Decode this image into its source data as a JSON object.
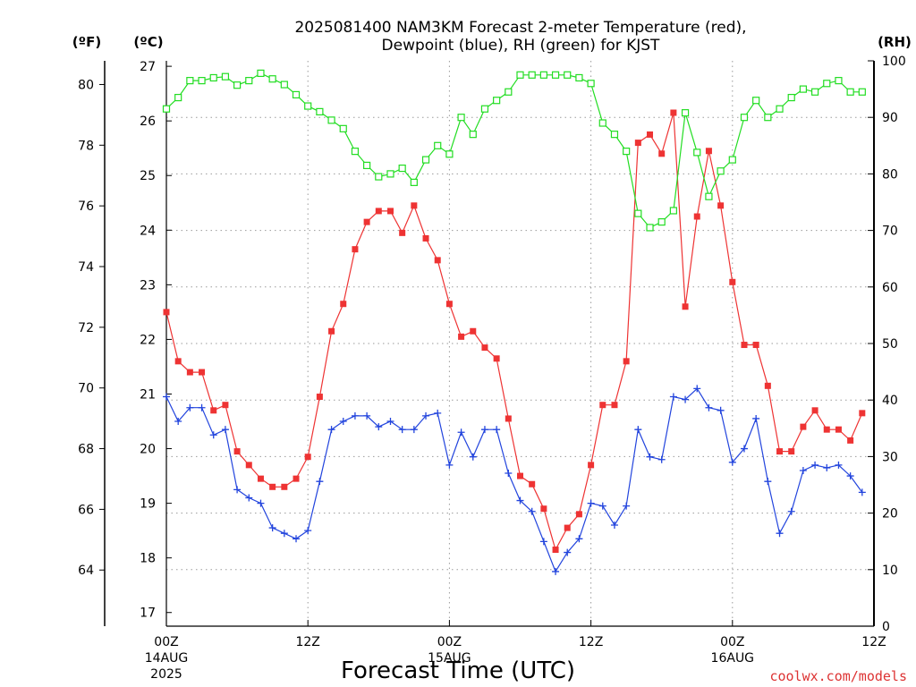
{
  "chart_data": {
    "type": "line",
    "title": "2025081400 NAM3KM Forecast 2-meter Temperature (red),",
    "subtitle": "Dewpoint (blue), RH (green) for KJST",
    "xlabel": "Forecast Time (UTC)",
    "credit": "coolwx.com/models",
    "axes": {
      "left_f": {
        "label": "(ºF)",
        "ticks": [
          64,
          66,
          68,
          70,
          72,
          74,
          76,
          78,
          80
        ]
      },
      "left_c": {
        "label": "(ºC)",
        "range": [
          16.75,
          27.1
        ],
        "ticks": [
          17,
          18,
          19,
          20,
          21,
          22,
          23,
          24,
          25,
          26,
          27
        ]
      },
      "right_rh": {
        "label": "(RH)",
        "range": [
          0,
          100
        ],
        "ticks": [
          0,
          10,
          20,
          30,
          40,
          50,
          60,
          70,
          80,
          90,
          100
        ]
      }
    },
    "x": {
      "unit": "forecast hour",
      "range": [
        0,
        60
      ],
      "ticks": [
        {
          "value": 0,
          "label": "00Z",
          "sub1": "14AUG",
          "sub2": "2025"
        },
        {
          "value": 12,
          "label": "12Z",
          "sub1": "",
          "sub2": ""
        },
        {
          "value": 24,
          "label": "00Z",
          "sub1": "15AUG",
          "sub2": ""
        },
        {
          "value": 36,
          "label": "12Z",
          "sub1": "",
          "sub2": ""
        },
        {
          "value": 48,
          "label": "00Z",
          "sub1": "16AUG",
          "sub2": ""
        },
        {
          "value": 60,
          "label": "12Z",
          "sub1": "",
          "sub2": ""
        }
      ]
    },
    "grid": true,
    "series": [
      {
        "name": "Temperature",
        "color": "#ee3333",
        "axis": "celsius",
        "marker": "square-filled",
        "values": [
          22.5,
          21.6,
          21.4,
          21.4,
          20.7,
          20.8,
          19.95,
          19.7,
          19.45,
          19.3,
          19.3,
          19.45,
          19.85,
          20.95,
          22.15,
          22.65,
          23.65,
          24.15,
          24.35,
          24.35,
          23.95,
          24.45,
          23.85,
          23.45,
          22.65,
          22.05,
          22.15,
          21.85,
          21.65,
          20.55,
          19.5,
          19.35,
          18.9,
          18.15,
          18.55,
          18.8,
          19.7,
          20.8,
          20.8,
          21.6,
          25.6,
          25.75,
          25.4,
          26.15,
          22.6,
          24.25,
          25.45,
          24.45,
          23.05,
          21.9,
          21.9,
          21.15,
          19.95,
          19.95,
          20.4,
          20.7,
          20.35,
          20.35,
          20.15,
          20.65
        ]
      },
      {
        "name": "Dewpoint",
        "color": "#2244dd",
        "axis": "celsius",
        "marker": "plus",
        "values": [
          20.95,
          20.5,
          20.75,
          20.75,
          20.25,
          20.35,
          19.25,
          19.1,
          19.0,
          18.55,
          18.45,
          18.35,
          18.5,
          19.4,
          20.35,
          20.5,
          20.6,
          20.6,
          20.4,
          20.5,
          20.35,
          20.35,
          20.6,
          20.65,
          19.7,
          20.3,
          19.85,
          20.35,
          20.35,
          19.55,
          19.05,
          18.85,
          18.3,
          17.75,
          18.1,
          18.35,
          19.0,
          18.95,
          18.6,
          18.95,
          20.35,
          19.85,
          19.8,
          20.95,
          20.9,
          21.1,
          20.75,
          20.7,
          19.75,
          20.0,
          20.55,
          19.4,
          18.45,
          18.85,
          19.6,
          19.7,
          19.65,
          19.7,
          19.5,
          19.2
        ]
      },
      {
        "name": "RH",
        "color": "#22dd22",
        "axis": "rh",
        "marker": "square-open",
        "values": [
          91.5,
          93.5,
          96.5,
          96.5,
          97,
          97.2,
          95.7,
          96.5,
          97.8,
          96.8,
          95.8,
          94,
          92,
          91,
          89.5,
          88,
          84,
          81.5,
          79.5,
          80,
          81,
          78.5,
          82.5,
          85,
          83.5,
          90,
          87,
          91.5,
          93,
          94.5,
          97.5,
          97.5,
          97.5,
          97.5,
          97.5,
          97,
          96,
          89,
          87,
          84,
          73,
          70.5,
          71.5,
          73.5,
          90.8,
          83.8,
          76,
          80.5,
          82.5,
          90,
          93,
          90,
          91.5,
          93.5,
          95,
          94.5,
          96,
          96.5,
          94.5,
          94.5
        ]
      }
    ]
  }
}
